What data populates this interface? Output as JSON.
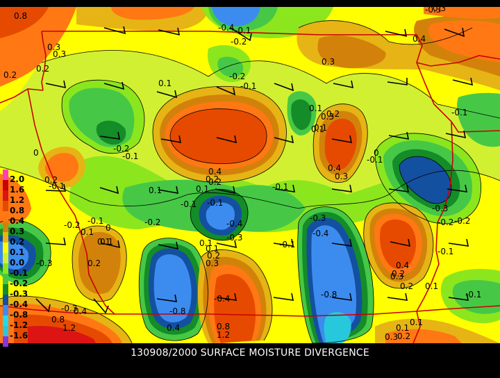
{
  "caption": "130908/2000 SURFACE MOISTURE DIVERGENCE",
  "legend": {
    "entries": [
      {
        "label": "2.0",
        "color": "#ff40c0"
      },
      {
        "label": "1.6",
        "color": "#c80000"
      },
      {
        "label": "1.2",
        "color": "#dc1414"
      },
      {
        "label": "0.8",
        "color": "#e64a00"
      },
      {
        "label": "0.4",
        "color": "#ff7814"
      },
      {
        "label": "0.3",
        "color": "#d2820a"
      },
      {
        "label": "0.2",
        "color": "#e6b414"
      },
      {
        "label": "0.1",
        "color": "#ffff00"
      },
      {
        "label": "0.0",
        "color": "#d2f032"
      },
      {
        "label": "-0.1",
        "color": "#8ce61e"
      },
      {
        "label": "-0.2",
        "color": "#46c846"
      },
      {
        "label": "-0.3",
        "color": "#148c28"
      },
      {
        "label": "-0.4",
        "color": "#1450a0"
      },
      {
        "label": "-0.8",
        "color": "#3c8cf0"
      },
      {
        "label": "-1.2",
        "color": "#1edcf0"
      },
      {
        "label": "-1.6",
        "color": "#28c8dc"
      },
      {
        "label": "",
        "color": "#8c32dc"
      }
    ]
  },
  "contour_labels": [
    {
      "id": "c1",
      "text": "0.8"
    },
    {
      "id": "c2",
      "text": "-0.3"
    },
    {
      "id": "c3",
      "text": "0.3"
    },
    {
      "id": "c4",
      "text": "-0.4"
    },
    {
      "id": "c5",
      "text": "0.3"
    },
    {
      "id": "c6",
      "text": "-0.2"
    },
    {
      "id": "c7",
      "text": "0.4"
    },
    {
      "id": "c8",
      "text": "-0.1"
    },
    {
      "id": "c9",
      "text": "0.3"
    },
    {
      "id": "c10",
      "text": "0.2"
    },
    {
      "id": "c11",
      "text": "0.2"
    },
    {
      "id": "c12",
      "text": "0.3"
    },
    {
      "id": "c13",
      "text": "-0.2"
    },
    {
      "id": "c14",
      "text": "0.1"
    },
    {
      "id": "c15",
      "text": "-0.1"
    },
    {
      "id": "c16",
      "text": "0.3"
    },
    {
      "id": "c17",
      "text": "0.1"
    },
    {
      "id": "c18",
      "text": "-0.1"
    },
    {
      "id": "c19",
      "text": "0.2"
    },
    {
      "id": "c20",
      "text": "0.1"
    },
    {
      "id": "c21",
      "text": "-0.2"
    },
    {
      "id": "c22",
      "text": "-0.1"
    },
    {
      "id": "c23",
      "text": "0"
    },
    {
      "id": "c24",
      "text": "0.4"
    },
    {
      "id": "c25",
      "text": "0.2"
    },
    {
      "id": "c26",
      "text": "0.1"
    },
    {
      "id": "c27",
      "text": "0.4"
    },
    {
      "id": "c28",
      "text": "0.3"
    },
    {
      "id": "c29",
      "text": "0"
    },
    {
      "id": "c30",
      "text": "-0.1"
    },
    {
      "id": "c31",
      "text": "0.2"
    },
    {
      "id": "c32",
      "text": "-0.1"
    },
    {
      "id": "c33",
      "text": "0.1"
    },
    {
      "id": "c34",
      "text": "-0.1"
    },
    {
      "id": "c35",
      "text": "0.2"
    },
    {
      "id": "c36",
      "text": "-0.1"
    },
    {
      "id": "c37",
      "text": "-0.2"
    },
    {
      "id": "c38",
      "text": "0.1"
    },
    {
      "id": "c39",
      "text": "-0.2"
    },
    {
      "id": "c40",
      "text": "-0.1"
    },
    {
      "id": "c41",
      "text": "0"
    },
    {
      "id": "c42",
      "text": "-0.2"
    },
    {
      "id": "c43",
      "text": "0.1"
    },
    {
      "id": "c44",
      "text": "-0.4"
    },
    {
      "id": "c45",
      "text": "-0.3"
    },
    {
      "id": "c46",
      "text": "0.1"
    },
    {
      "id": "c47",
      "text": "-0.1"
    },
    {
      "id": "c48",
      "text": "-0.3"
    },
    {
      "id": "c49",
      "text": "-0.4"
    },
    {
      "id": "c50",
      "text": "0.1"
    },
    {
      "id": "c51",
      "text": "0.2"
    },
    {
      "id": "c52",
      "text": "0.3"
    },
    {
      "id": "c53",
      "text": "-0.3"
    },
    {
      "id": "c54",
      "text": "-0.2"
    },
    {
      "id": "c55",
      "text": "-0.1"
    },
    {
      "id": "c56",
      "text": "0.2"
    },
    {
      "id": "c57",
      "text": "0.1"
    },
    {
      "id": "c58",
      "text": "0.4"
    },
    {
      "id": "c59",
      "text": "0.3"
    },
    {
      "id": "c60",
      "text": "-0.8"
    },
    {
      "id": "c61",
      "text": "-0.4"
    },
    {
      "id": "c62",
      "text": "0.2"
    },
    {
      "id": "c63",
      "text": "-0.8"
    },
    {
      "id": "c64",
      "text": "0.4"
    },
    {
      "id": "c65",
      "text": "0.2"
    },
    {
      "id": "c66",
      "text": "0.1"
    },
    {
      "id": "c67",
      "text": "-0.1"
    },
    {
      "id": "c68",
      "text": "0.1"
    },
    {
      "id": "c69",
      "text": "0.8"
    },
    {
      "id": "c70",
      "text": "1.2"
    },
    {
      "id": "c71",
      "text": "-0.3"
    },
    {
      "id": "c72",
      "text": "0.4"
    },
    {
      "id": "c73",
      "text": "0.8"
    },
    {
      "id": "c74",
      "text": "1.2"
    },
    {
      "id": "c75",
      "text": "0.1"
    },
    {
      "id": "c76",
      "text": "0.2"
    },
    {
      "id": "c77",
      "text": "0.3"
    },
    {
      "id": "c78",
      "text": "0.1"
    },
    {
      "id": "c79",
      "text": "-0.1"
    },
    {
      "id": "c80",
      "text": "-0.3"
    }
  ],
  "colors": {
    "background": "#000000",
    "boundary": "#c80000",
    "contour_line": "#000000"
  }
}
